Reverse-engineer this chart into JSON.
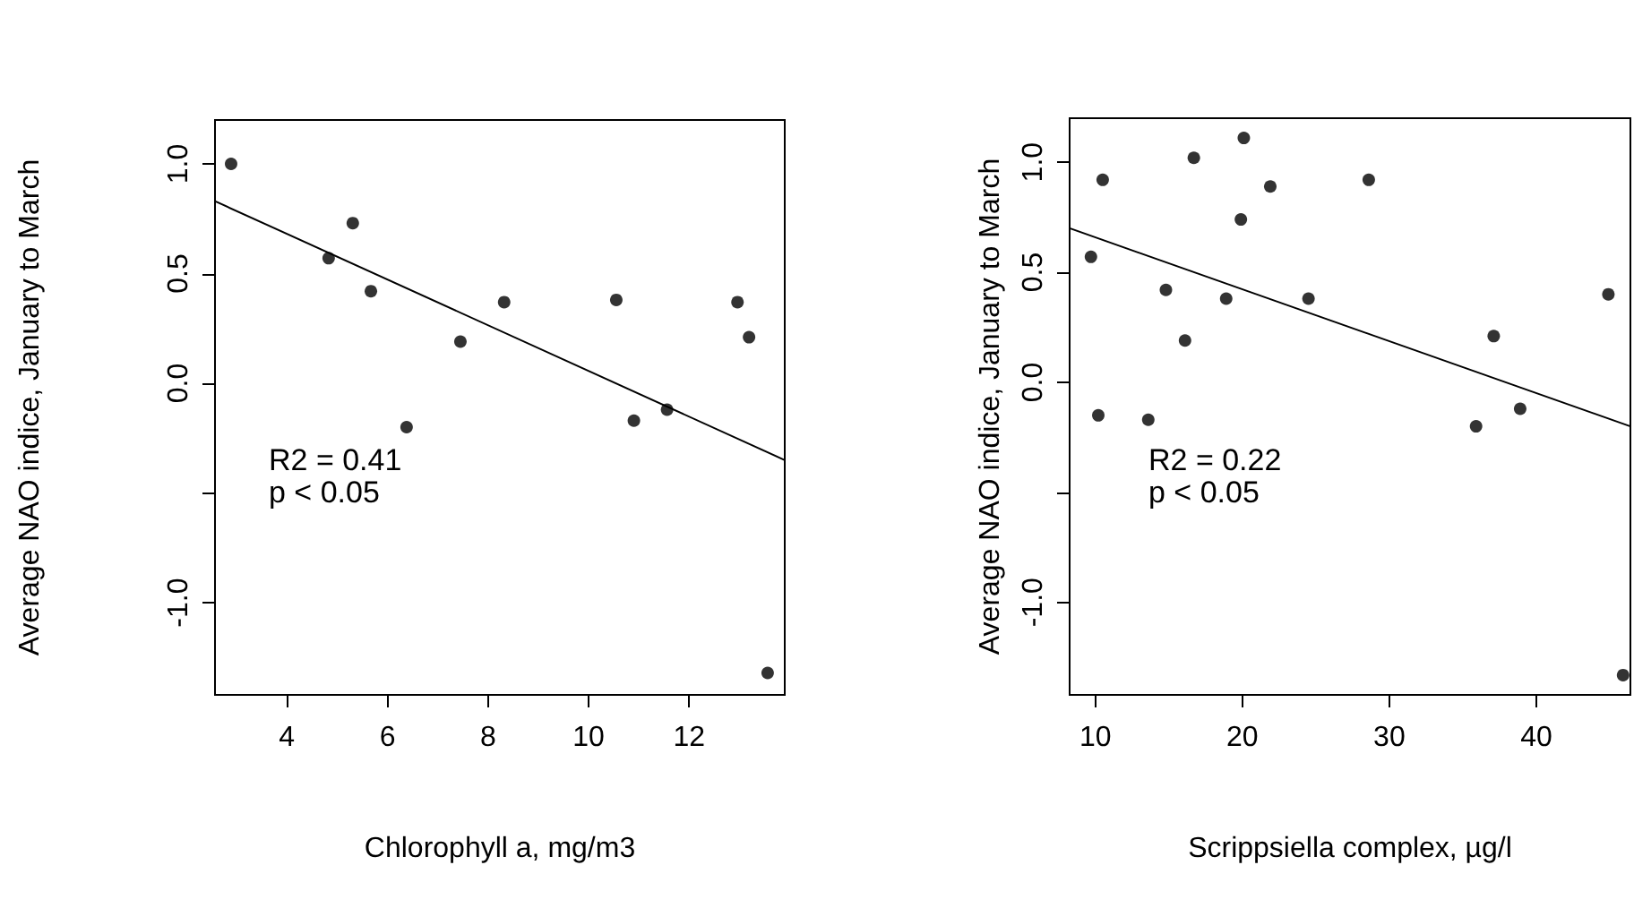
{
  "chart_data": [
    {
      "type": "scatter",
      "xlabel": "Chlorophyll a, mg/m3",
      "ylabel": "Average NAO indice, January to March",
      "annotations": [
        "R2 = 0.41\np < 0.05"
      ],
      "marker": "circle",
      "grid": false,
      "xlim": [
        2.57,
        13.9
      ],
      "xticks": [
        4,
        6,
        8,
        10,
        12
      ],
      "ylim": [
        -1.42,
        1.2
      ],
      "yticks": [
        {
          "value": -1,
          "label": "-1.0"
        },
        {
          "value": -0.5,
          "label": null
        },
        {
          "value": 0,
          "label": "0.0"
        },
        {
          "value": 0.5,
          "label": "0.5"
        },
        {
          "value": 1,
          "label": "1.0"
        }
      ],
      "series": [
        {
          "type": "scatter",
          "color": "#000000",
          "x": [
            2.89,
            5.31,
            4.83,
            5.67,
            6.38,
            7.45,
            8.32,
            10.55,
            10.9,
            11.56,
            12.96,
            13.19,
            13.56
          ],
          "values": [
            1.0,
            0.73,
            0.57,
            0.42,
            -0.2,
            0.19,
            0.37,
            0.38,
            -0.17,
            -0.12,
            0.37,
            0.21,
            -1.32
          ]
        },
        {
          "type": "line",
          "color": "#000000",
          "line_style": "solid",
          "marker": "none",
          "x": [
            2.57,
            13.9
          ],
          "values": [
            0.83,
            -0.35
          ]
        }
      ]
    },
    {
      "type": "scatter",
      "xlabel": "Scrippsiella complex, µg/l",
      "ylabel": "Average NAO indice, January to March",
      "annotations": [
        "R2 = 0.22\np < 0.05"
      ],
      "marker": "circle",
      "grid": false,
      "xlim": [
        8.25,
        46.4
      ],
      "xticks": [
        10,
        20,
        30,
        40
      ],
      "ylim": [
        -1.42,
        1.2
      ],
      "yticks": [
        {
          "value": -1,
          "label": "-1.0"
        },
        {
          "value": -0.5,
          "label": null
        },
        {
          "value": 0,
          "label": "0.0"
        },
        {
          "value": 0.5,
          "label": "0.5"
        },
        {
          "value": 1,
          "label": "1.0"
        }
      ],
      "series": [
        {
          "type": "scatter",
          "color": "#000000",
          "x": [
            9.7,
            10.5,
            10.2,
            13.6,
            14.8,
            16.1,
            16.7,
            18.9,
            19.9,
            20.1,
            21.9,
            24.5,
            28.6,
            35.9,
            37.1,
            38.9,
            44.9,
            45.9
          ],
          "values": [
            0.57,
            0.92,
            -0.15,
            -0.17,
            0.42,
            0.19,
            1.02,
            0.38,
            0.74,
            1.11,
            0.89,
            0.38,
            0.92,
            -0.2,
            0.21,
            -0.12,
            0.4,
            -1.33
          ]
        },
        {
          "type": "line",
          "color": "#000000",
          "line_style": "solid",
          "marker": "none",
          "x": [
            8.25,
            46.4
          ],
          "values": [
            0.7,
            -0.2
          ]
        }
      ]
    }
  ]
}
